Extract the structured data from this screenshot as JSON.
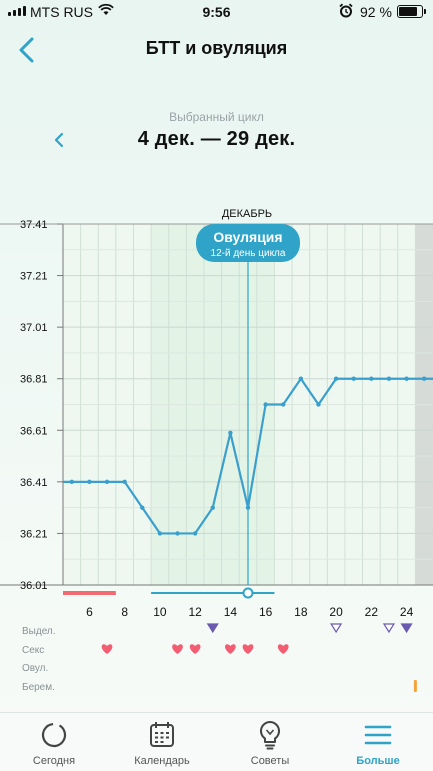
{
  "status_bar": {
    "carrier": "MTS RUS",
    "time": "9:56",
    "battery": "92 %",
    "battery_level": 0.92
  },
  "header": {
    "title": "БТТ и овуляция"
  },
  "cycle": {
    "label": "Выбранный цикл",
    "range": "4 дек. — 29 дек."
  },
  "chart_data": {
    "type": "line",
    "month_label": "ДЕКАБРЬ",
    "y_ticks": [
      "36.01",
      "36.21",
      "36.41",
      "36.61",
      "36.81",
      "37.01",
      "37.21",
      "37.41"
    ],
    "ylim": [
      36.01,
      37.41
    ],
    "xlim": [
      4.5,
      25.5
    ],
    "x_ticks": [
      "6",
      "8",
      "10",
      "12",
      "14",
      "16",
      "18",
      "20",
      "22",
      "24"
    ],
    "series": [
      {
        "x": [
          4.5,
          5,
          6,
          7,
          8,
          9,
          10,
          11,
          12,
          13,
          14,
          15,
          16,
          17,
          18,
          19,
          20,
          21,
          22,
          23,
          24,
          25,
          25.5
        ],
        "y": [
          36.41,
          36.41,
          36.41,
          36.41,
          36.41,
          36.31,
          36.21,
          36.21,
          36.21,
          36.31,
          36.6,
          36.31,
          36.71,
          36.71,
          36.81,
          36.71,
          36.81,
          36.81,
          36.81,
          36.81,
          36.81,
          36.81,
          36.81
        ]
      }
    ],
    "ovulation": {
      "day": 15,
      "title": "Овуляция",
      "subtitle": "12-й день цикла"
    },
    "grid": true,
    "period_days": [
      4.5,
      7.5
    ],
    "fertile_days": [
      9.5,
      16.5
    ],
    "symptom_rows": [
      "Выдел.",
      "Секс",
      "Овул.",
      "Берем."
    ],
    "discharge_days": [
      13,
      20,
      23,
      24
    ],
    "sex_days": [
      7,
      11,
      12,
      14,
      15,
      17
    ],
    "pregnancy_test_days": [
      24.5
    ]
  },
  "colors": {
    "line": "#3a9fcc",
    "accent": "#2fa3c8",
    "period": "#f06a70",
    "heart": "#f25d72",
    "discharge": "#6b5bb0"
  },
  "tabs": [
    {
      "label": "Сегодня",
      "icon": "circle-progress-icon"
    },
    {
      "label": "Календарь",
      "icon": "calendar-icon"
    },
    {
      "label": "Советы",
      "icon": "lightbulb-icon"
    },
    {
      "label": "Больше",
      "icon": "menu-icon"
    }
  ]
}
